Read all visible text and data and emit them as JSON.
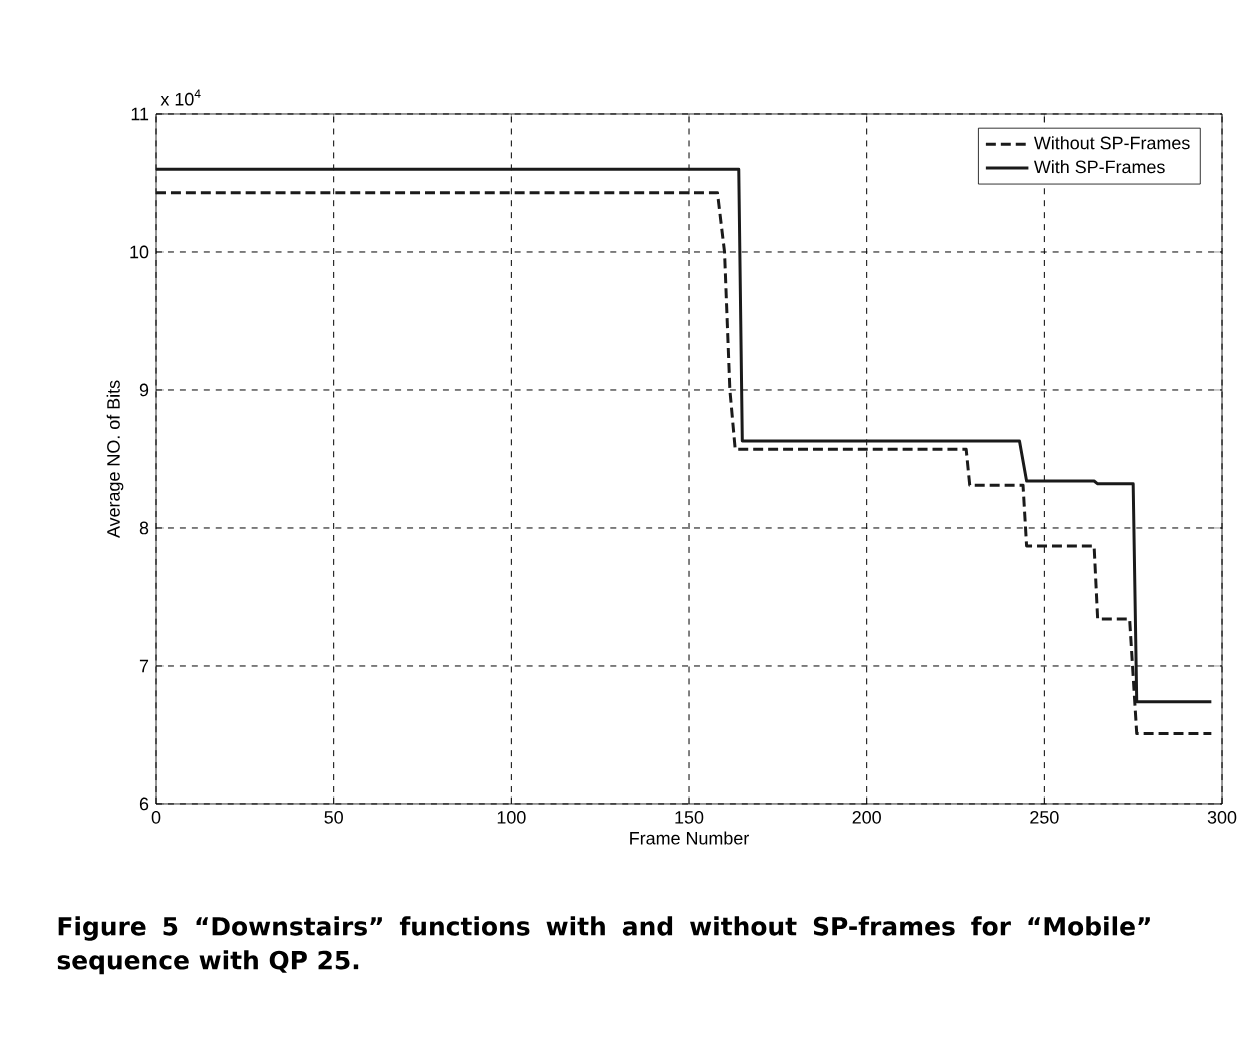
{
  "chart_data": {
    "type": "line",
    "xlabel": "Frame Number",
    "ylabel": "Average NO. of Bits",
    "annotations": [
      "x 10$^{4}$",
      "Figure 5 “Downstairs” functions with and without SP-frames for “Mobile” sequence with QP 25."
    ],
    "xlim": [
      0,
      300
    ],
    "ylim": [
      6,
      11
    ],
    "xticks": [
      0,
      50,
      100,
      150,
      200,
      250,
      300
    ],
    "yticks": [
      6,
      7,
      8,
      9,
      10,
      11
    ],
    "grid": true,
    "legend": "top right",
    "series": [
      {
        "name": "Without SP-Frames",
        "color": "#1a1a1a",
        "line_style": "dashed",
        "x": [
          0,
          158,
          160,
          161.5,
          163,
          228,
          229,
          244,
          245,
          264,
          265,
          274,
          276,
          297
        ],
        "values": [
          10.43,
          10.43,
          10.0,
          9.0,
          8.57,
          8.57,
          8.31,
          8.31,
          7.87,
          7.87,
          7.34,
          7.34,
          6.51,
          6.51
        ]
      },
      {
        "name": "With SP-Frames",
        "color": "#1a1a1a",
        "line_style": "solid",
        "x": [
          0,
          164,
          165,
          243,
          245,
          264,
          265,
          275,
          276,
          297
        ],
        "values": [
          10.6,
          10.6,
          8.63,
          8.63,
          8.34,
          8.34,
          8.32,
          8.32,
          6.74,
          6.74
        ]
      }
    ]
  }
}
